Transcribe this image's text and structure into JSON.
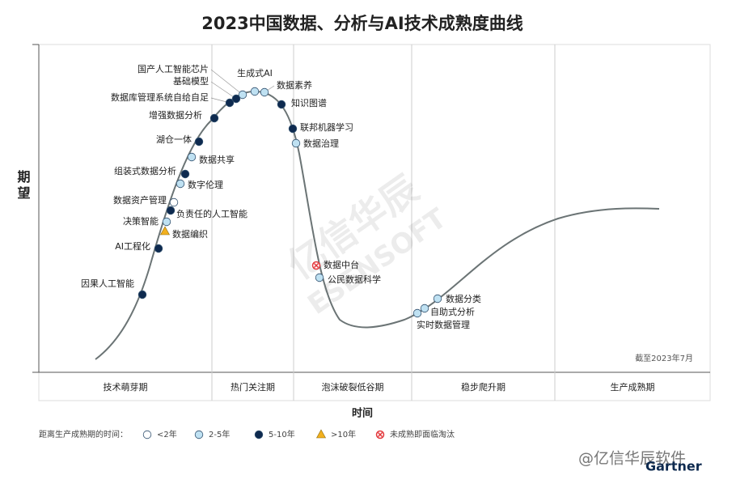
{
  "title": "2023中国数据、分析与AI技术成熟度曲线",
  "y_axis_label": "期望",
  "x_axis_label": "时间",
  "note": "截至2023年7月",
  "phases": [
    "技术萌芽期",
    "热门关注期",
    "泡沫破裂低谷期",
    "稳步爬升期",
    "生产成熟期"
  ],
  "legend": {
    "title": "距离生产成熟期的时间：",
    "items": [
      {
        "label": "<2年",
        "marker": "circle",
        "color": "#ffffff"
      },
      {
        "label": "2-5年",
        "marker": "circle",
        "color": "#bfe1f2"
      },
      {
        "label": "5-10年",
        "marker": "circle",
        "color": "#0e2a4f"
      },
      {
        "label": ">10年",
        "marker": "triangle",
        "color": "#f2b01e"
      },
      {
        "label": "未成熟即面临淘汰",
        "marker": "cross",
        "color": "#e3383c"
      }
    ]
  },
  "technologies": [
    {
      "label": "国产人工智能芯片",
      "marker": "circle",
      "color": "#bfe1f2"
    },
    {
      "label": "基础模型",
      "marker": "circle",
      "color": "#0e2a4f"
    },
    {
      "label": "数据库管理系统自给自足",
      "marker": "circle",
      "color": "#0e2a4f"
    },
    {
      "label": "生成式AI",
      "marker": "circle",
      "color": "#bfe1f2"
    },
    {
      "label": "数据素养",
      "marker": "circle",
      "color": "#bfe1f2"
    },
    {
      "label": "知识图谱",
      "marker": "circle",
      "color": "#0e2a4f"
    },
    {
      "label": "增强数据分析",
      "marker": "circle",
      "color": "#0e2a4f"
    },
    {
      "label": "联邦机器学习",
      "marker": "circle",
      "color": "#0e2a4f"
    },
    {
      "label": "数据治理",
      "marker": "circle",
      "color": "#bfe1f2"
    },
    {
      "label": "湖仓一体",
      "marker": "circle",
      "color": "#0e2a4f"
    },
    {
      "label": "数据共享",
      "marker": "circle",
      "color": "#bfe1f2"
    },
    {
      "label": "组装式数据分析",
      "marker": "circle",
      "color": "#0e2a4f"
    },
    {
      "label": "数字伦理",
      "marker": "circle",
      "color": "#bfe1f2"
    },
    {
      "label": "数据资产管理",
      "marker": "circle",
      "color": "#ffffff"
    },
    {
      "label": "负责任的人工智能",
      "marker": "circle",
      "color": "#0e2a4f"
    },
    {
      "label": "决策智能",
      "marker": "circle",
      "color": "#bfe1f2"
    },
    {
      "label": "数据编织",
      "marker": "triangle",
      "color": "#f2b01e"
    },
    {
      "label": "AI工程化",
      "marker": "circle",
      "color": "#0e2a4f"
    },
    {
      "label": "因果人工智能",
      "marker": "circle",
      "color": "#0e2a4f"
    },
    {
      "label": "数据中台",
      "marker": "cross",
      "color": "#e3383c"
    },
    {
      "label": "公民数据科学",
      "marker": "circle",
      "color": "#bfe1f2"
    },
    {
      "label": "数据分类",
      "marker": "circle",
      "color": "#bfe1f2"
    },
    {
      "label": "自助式分析",
      "marker": "circle",
      "color": "#bfe1f2"
    },
    {
      "label": "实时数据管理",
      "marker": "circle",
      "color": "#bfe1f2"
    }
  ],
  "watermark": [
    "亿信华辰",
    "ESENSOFT"
  ],
  "footer": "@亿信华辰软件",
  "brand": "Gartner"
}
